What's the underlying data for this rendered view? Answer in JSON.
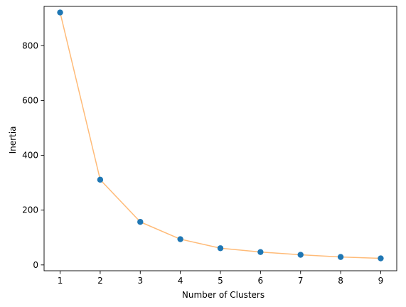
{
  "chart_data": {
    "type": "line",
    "title": "",
    "xlabel": "Number of Clusters",
    "ylabel": "Inertia",
    "x": [
      1,
      2,
      3,
      4,
      5,
      6,
      7,
      8,
      9
    ],
    "y": [
      921,
      311,
      157,
      94,
      61,
      47,
      37,
      29,
      24
    ],
    "xlim": [
      0.6,
      9.4
    ],
    "ylim": [
      -21.25,
      943.25
    ],
    "xticks": [
      1,
      2,
      3,
      4,
      5,
      6,
      7,
      8,
      9
    ],
    "yticks": [
      0,
      200,
      400,
      600,
      800
    ],
    "grid": false,
    "legend": "none",
    "colors": {
      "line": "#ffbb78",
      "marker": "#1f77b4",
      "axes": "#000000"
    }
  }
}
